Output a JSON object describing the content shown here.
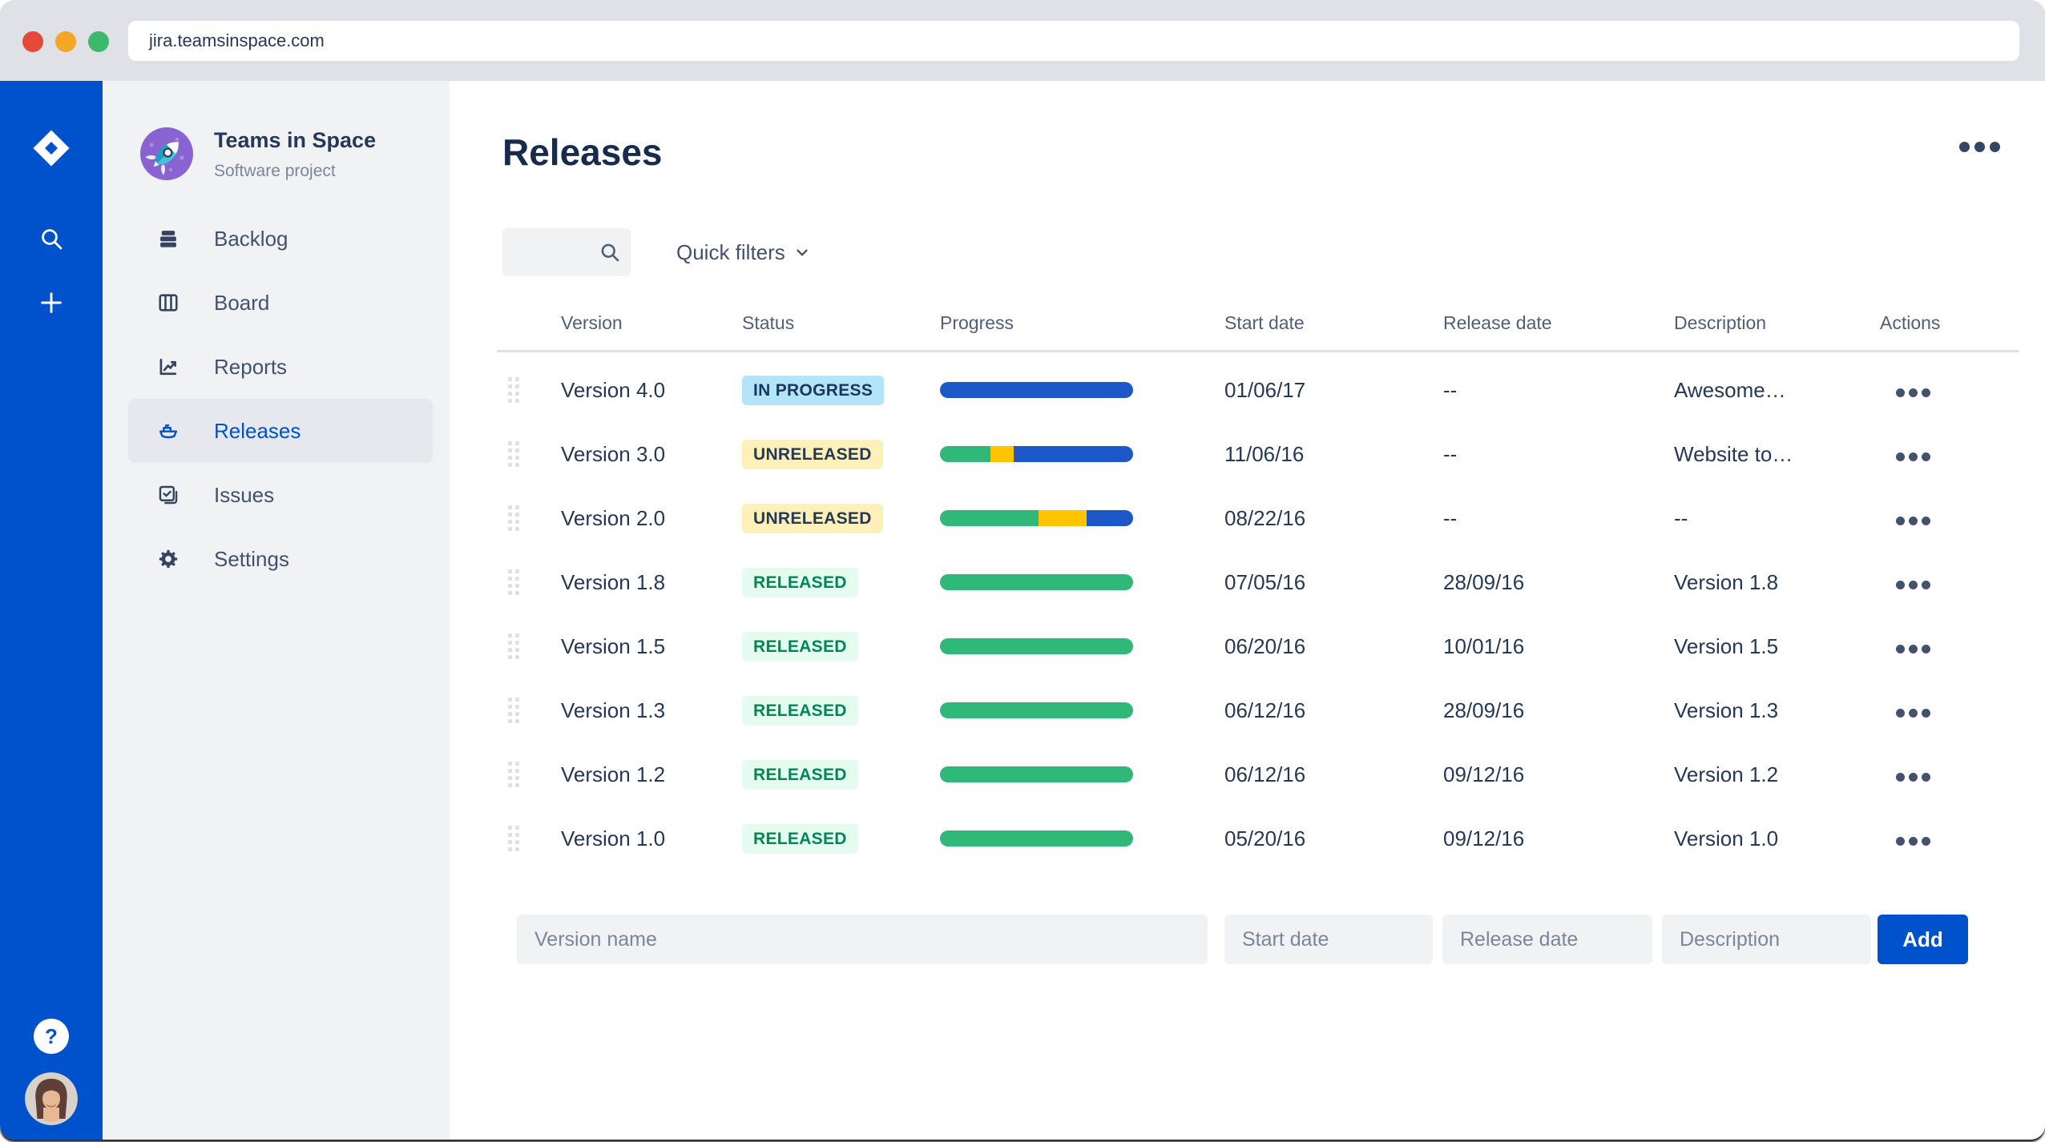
{
  "browser": {
    "url": "jira.teamsinspace.com"
  },
  "project": {
    "name": "Teams in Space",
    "type": "Software project",
    "avatar": "rocket-avatar"
  },
  "rail": {
    "icons": [
      {
        "id": "jira-logo",
        "name": "jira-logo"
      },
      {
        "id": "search",
        "name": "search-icon"
      },
      {
        "id": "add",
        "name": "add-icon"
      }
    ],
    "help_label": "?",
    "user_avatar": "user-photo"
  },
  "sidebar": {
    "items": [
      {
        "id": "backlog",
        "label": "Backlog",
        "icon": "backlog-icon",
        "active": false
      },
      {
        "id": "board",
        "label": "Board",
        "icon": "board-icon",
        "active": false
      },
      {
        "id": "reports",
        "label": "Reports",
        "icon": "reports-icon",
        "active": false
      },
      {
        "id": "releases",
        "label": "Releases",
        "icon": "ship-icon",
        "active": true
      },
      {
        "id": "issues",
        "label": "Issues",
        "icon": "issues-icon",
        "active": false
      },
      {
        "id": "settings",
        "label": "Settings",
        "icon": "gear-icon",
        "active": false
      }
    ]
  },
  "page": {
    "title": "Releases"
  },
  "toolbar": {
    "search_placeholder": "",
    "quick_filters_label": "Quick filters"
  },
  "table": {
    "headers": [
      "Version",
      "Status",
      "Progress",
      "Start date",
      "Release date",
      "Description",
      "Actions"
    ],
    "rows": [
      {
        "version": "Version 4.0",
        "status": "IN PROGRESS",
        "status_kind": "inprogress",
        "segments": [
          {
            "color": "blue",
            "pct": 100
          }
        ],
        "start_date": "01/06/17",
        "release_date": "--",
        "description": "Awesome…"
      },
      {
        "version": "Version 3.0",
        "status": "UNRELEASED",
        "status_kind": "unreleased",
        "segments": [
          {
            "color": "green",
            "pct": 26
          },
          {
            "color": "yellow",
            "pct": 12
          },
          {
            "color": "blue",
            "pct": 62
          }
        ],
        "start_date": "11/06/16",
        "release_date": "--",
        "description": "Website to…"
      },
      {
        "version": "Version 2.0",
        "status": "UNRELEASED",
        "status_kind": "unreleased",
        "segments": [
          {
            "color": "green",
            "pct": 51
          },
          {
            "color": "yellow",
            "pct": 25
          },
          {
            "color": "blue",
            "pct": 24
          }
        ],
        "start_date": "08/22/16",
        "release_date": "--",
        "description": "--"
      },
      {
        "version": "Version 1.8",
        "status": "RELEASED",
        "status_kind": "released",
        "segments": [
          {
            "color": "green",
            "pct": 100
          }
        ],
        "start_date": "07/05/16",
        "release_date": "28/09/16",
        "description": "Version 1.8"
      },
      {
        "version": "Version 1.5",
        "status": "RELEASED",
        "status_kind": "released",
        "segments": [
          {
            "color": "green",
            "pct": 100
          }
        ],
        "start_date": "06/20/16",
        "release_date": "10/01/16",
        "description": "Version 1.5"
      },
      {
        "version": "Version 1.3",
        "status": "RELEASED",
        "status_kind": "released",
        "segments": [
          {
            "color": "green",
            "pct": 100
          }
        ],
        "start_date": "06/12/16",
        "release_date": "28/09/16",
        "description": "Version 1.3"
      },
      {
        "version": "Version 1.2",
        "status": "RELEASED",
        "status_kind": "released",
        "segments": [
          {
            "color": "green",
            "pct": 100
          }
        ],
        "start_date": "06/12/16",
        "release_date": "09/12/16",
        "description": "Version 1.2"
      },
      {
        "version": "Version 1.0",
        "status": "RELEASED",
        "status_kind": "released",
        "segments": [
          {
            "color": "green",
            "pct": 100
          }
        ],
        "start_date": "05/20/16",
        "release_date": "09/12/16",
        "description": "Version 1.0"
      }
    ]
  },
  "form": {
    "version_placeholder": "Version name",
    "start_placeholder": "Start date",
    "release_placeholder": "Release date",
    "description_placeholder": "Description",
    "add_label": "Add"
  },
  "colors": {
    "accent": "#0052CC",
    "rail": "#0052CC",
    "progress": {
      "green": "#2FB877",
      "yellow": "#FFC400",
      "blue": "#1D58C8"
    },
    "badges": {
      "inprogress": {
        "bg": "#B3E5FA",
        "fg": "#1C355E"
      },
      "unreleased": {
        "bg": "#FDF0B8",
        "fg": "#253858"
      },
      "released": {
        "bg": "#E3FCEF",
        "fg": "#00875A"
      }
    }
  }
}
